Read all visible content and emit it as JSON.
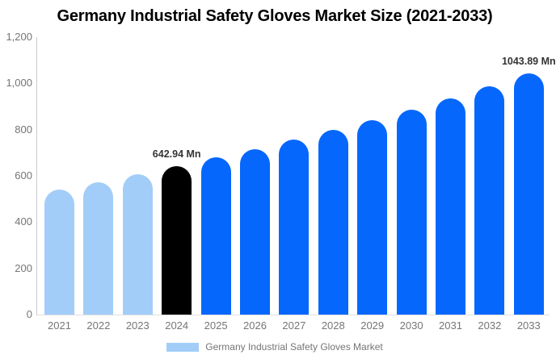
{
  "title": "Germany Industrial Safety Gloves Market Size (2021-2033)",
  "legend": {
    "label": "Germany Industrial Safety Gloves Market"
  },
  "colors": {
    "historical_bar": "#A2CDF9",
    "current_bar": "#000000",
    "forecast_bar": "#0667FC",
    "axis_text": "#757575",
    "title_text": "#000000",
    "data_label_text": "#333333",
    "axis_line": "#cccccc",
    "baseline_line": "#e0e0e0",
    "background": "#ffffff"
  },
  "chart_data": {
    "type": "bar",
    "title": "Germany Industrial Safety Gloves Market Size (2021-2033)",
    "unit": "Mn",
    "categories": [
      "2021",
      "2022",
      "2023",
      "2024",
      "2025",
      "2026",
      "2027",
      "2028",
      "2029",
      "2030",
      "2031",
      "2032",
      "2033"
    ],
    "values": [
      539.8,
      572.3,
      606.7,
      642.94,
      678.5,
      716.0,
      755.5,
      797.2,
      841.2,
      887.6,
      936.6,
      988.3,
      1043.89
    ],
    "bar_colors": [
      "#A2CDF9",
      "#A2CDF9",
      "#A2CDF9",
      "#000000",
      "#0667FC",
      "#0667FC",
      "#0667FC",
      "#0667FC",
      "#0667FC",
      "#0667FC",
      "#0667FC",
      "#0667FC",
      "#0667FC"
    ],
    "data_labels": [
      {
        "category": "2024",
        "text": "642.94 Mn"
      },
      {
        "category": "2033",
        "text": "1043.89 Mn"
      }
    ],
    "xlabel": "",
    "ylabel": "",
    "ylim": [
      0,
      1200
    ],
    "ytick_step": 200,
    "ytick_labels": [
      "0",
      "200",
      "400",
      "600",
      "800",
      "1,000",
      "1,200"
    ],
    "grid": false,
    "legend_position": "bottom",
    "legend_entries": [
      {
        "label": "Germany Industrial Safety Gloves Market",
        "color": "#A2CDF9"
      }
    ]
  }
}
